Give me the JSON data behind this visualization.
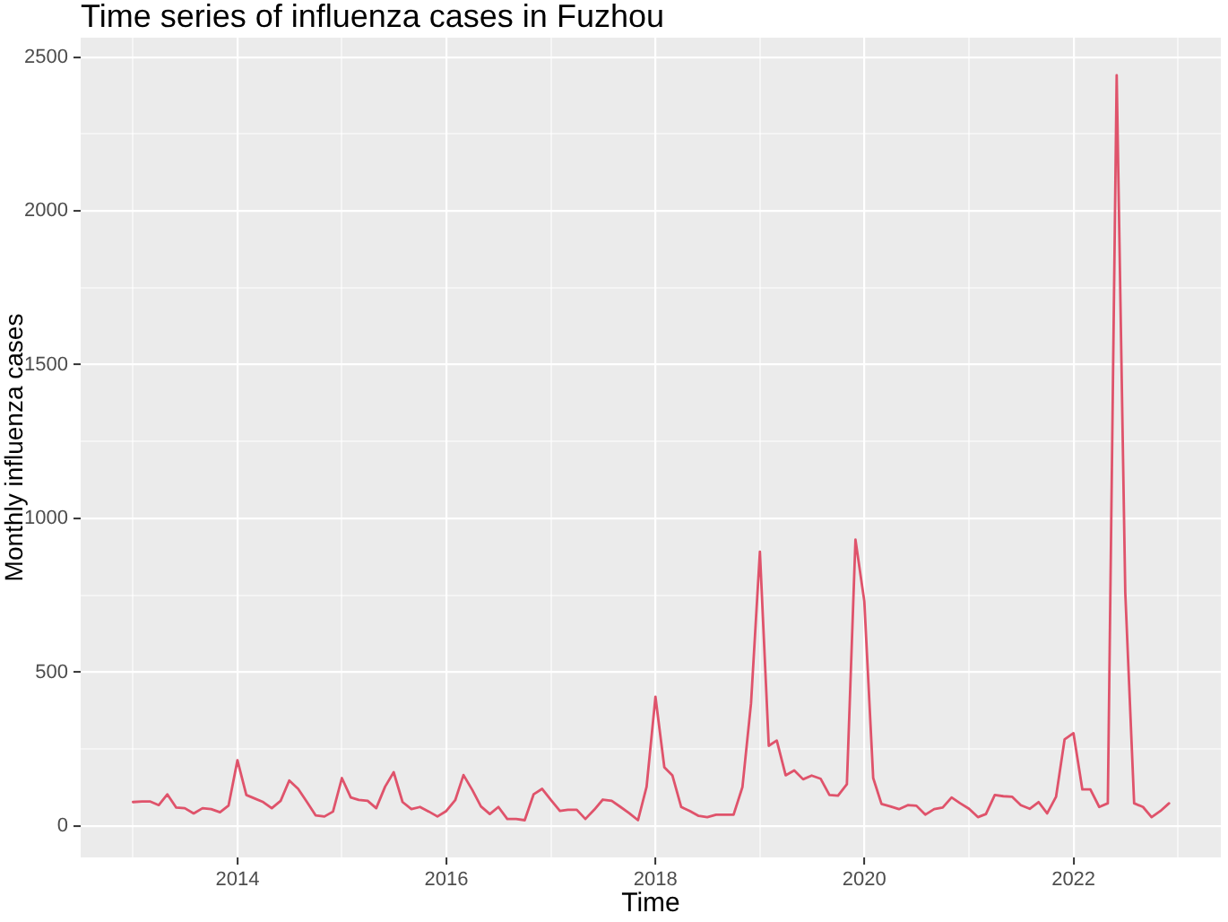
{
  "chart_data": {
    "type": "line",
    "title": "Time series of influenza cases in Fuzhou",
    "xlabel": "Time",
    "ylabel": "Monthly influenza cases",
    "x": [
      "2013-01",
      "2013-02",
      "2013-03",
      "2013-04",
      "2013-05",
      "2013-06",
      "2013-07",
      "2013-08",
      "2013-09",
      "2013-10",
      "2013-11",
      "2013-12",
      "2014-01",
      "2014-02",
      "2014-03",
      "2014-04",
      "2014-05",
      "2014-06",
      "2014-07",
      "2014-08",
      "2014-09",
      "2014-10",
      "2014-11",
      "2014-12",
      "2015-01",
      "2015-02",
      "2015-03",
      "2015-04",
      "2015-05",
      "2015-06",
      "2015-07",
      "2015-08",
      "2015-09",
      "2015-10",
      "2015-11",
      "2015-12",
      "2016-01",
      "2016-02",
      "2016-03",
      "2016-04",
      "2016-05",
      "2016-06",
      "2016-07",
      "2016-08",
      "2016-09",
      "2016-10",
      "2016-11",
      "2016-12",
      "2017-01",
      "2017-02",
      "2017-03",
      "2017-04",
      "2017-05",
      "2017-06",
      "2017-07",
      "2017-08",
      "2017-09",
      "2017-10",
      "2017-11",
      "2017-12",
      "2018-01",
      "2018-02",
      "2018-03",
      "2018-04",
      "2018-05",
      "2018-06",
      "2018-07",
      "2018-08",
      "2018-09",
      "2018-10",
      "2018-11",
      "2018-12",
      "2019-01",
      "2019-02",
      "2019-03",
      "2019-04",
      "2019-05",
      "2019-06",
      "2019-07",
      "2019-08",
      "2019-09",
      "2019-10",
      "2019-11",
      "2019-12",
      "2020-01",
      "2020-02",
      "2020-03",
      "2020-04",
      "2020-05",
      "2020-06",
      "2020-07",
      "2020-08",
      "2020-09",
      "2020-10",
      "2020-11",
      "2020-12",
      "2021-01",
      "2021-02",
      "2021-03",
      "2021-04",
      "2021-05",
      "2021-06",
      "2021-07",
      "2021-08",
      "2021-09",
      "2021-10",
      "2021-11",
      "2021-12",
      "2022-01",
      "2022-02",
      "2022-03",
      "2022-04",
      "2022-05",
      "2022-06",
      "2022-07",
      "2022-08",
      "2022-09",
      "2022-10",
      "2022-11",
      "2022-12"
    ],
    "series": [
      {
        "color": "#df536b",
        "values": [
          78,
          80,
          80,
          68,
          103,
          60,
          58,
          41,
          58,
          55,
          45,
          67,
          214,
          101,
          90,
          78,
          58,
          82,
          148,
          121,
          78,
          35,
          31,
          47,
          156,
          93,
          85,
          82,
          58,
          128,
          175,
          78,
          55,
          62,
          47,
          31,
          49,
          84,
          166,
          117,
          64,
          39,
          62,
          23,
          23,
          19,
          103,
          121,
          84,
          49,
          53,
          53,
          23,
          53,
          86,
          82,
          62,
          42,
          19,
          128,
          420,
          191,
          165,
          62,
          49,
          33,
          29,
          37,
          37,
          37,
          127,
          399,
          892,
          261,
          278,
          165,
          181,
          152,
          164,
          154,
          101,
          99,
          136,
          931,
          730,
          156,
          72,
          64,
          55,
          68,
          66,
          37,
          55,
          60,
          93,
          74,
          56,
          29,
          39,
          101,
          97,
          95,
          68,
          56,
          78,
          41,
          95,
          282,
          302,
          119,
          119,
          62,
          74,
          2441,
          760,
          74,
          62,
          29,
          49,
          74
        ]
      }
    ],
    "xlim": [
      "2012-07-02",
      "2023-05-31"
    ],
    "xticks": [
      {
        "value": "2013",
        "label": null
      },
      "2014",
      {
        "value": "2015",
        "label": null
      },
      "2016",
      {
        "value": "2017",
        "label": null
      },
      "2018",
      {
        "value": "2019",
        "label": null
      },
      "2020",
      {
        "value": "2021",
        "label": null
      },
      "2022",
      {
        "value": "2023",
        "label": null
      }
    ],
    "ylim": [
      -102,
      2563
    ],
    "yticks": [
      0,
      {
        "value": 250,
        "label": null
      },
      500,
      {
        "value": 750,
        "label": null
      },
      1000,
      {
        "value": 1250,
        "label": null
      },
      1500,
      {
        "value": 1750,
        "label": null
      },
      2000,
      {
        "value": 2250,
        "label": null
      },
      2500
    ],
    "grid": true,
    "marker": "none",
    "line_style": "solid"
  }
}
